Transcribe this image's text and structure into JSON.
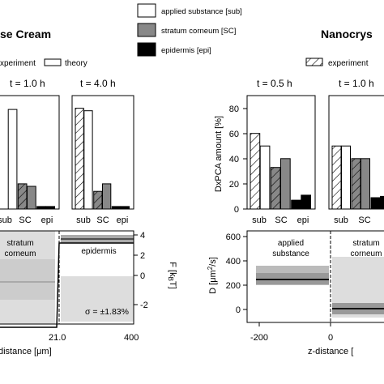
{
  "figure": {
    "left_title": "se Cream",
    "right_title": "Nanocrys"
  },
  "legend": {
    "entries": [
      {
        "label": "applied substance [sub]",
        "color": "#ffffff"
      },
      {
        "label": "stratum corneum [SC]",
        "color": "#888888"
      },
      {
        "label": "epidermis [epi]",
        "color": "#000000"
      }
    ],
    "left_experiment": "xperiment",
    "left_theory": "theory",
    "right_experiment": "experiment"
  },
  "colors": {
    "sub": "#ffffff",
    "sc": "#888888",
    "epi": "#000000",
    "band_light": "#dddddd",
    "band_mid": "#bbbbbb",
    "band_dark": "#999999"
  },
  "chart_data": [
    {
      "id": "bar-left-1h",
      "type": "bar",
      "title": "t = 1.0 h",
      "categories": [
        "sub",
        "SC",
        "epi"
      ],
      "ylim": [
        0,
        90
      ],
      "series": [
        {
          "name": "experiment",
          "values": [
            null,
            20,
            2
          ]
        },
        {
          "name": "theory",
          "values": [
            79,
            18,
            2
          ]
        }
      ]
    },
    {
      "id": "bar-left-4h",
      "type": "bar",
      "title": "t = 4.0 h",
      "categories": [
        "sub",
        "SC",
        "epi"
      ],
      "ylim": [
        0,
        90
      ],
      "series": [
        {
          "name": "experiment",
          "values": [
            80,
            14,
            2
          ]
        },
        {
          "name": "theory",
          "values": [
            78,
            20,
            2
          ]
        }
      ]
    },
    {
      "id": "bar-right-0.5h",
      "type": "bar",
      "title": "t = 0.5 h",
      "ylabel": "DxPCA amount [%]",
      "categories": [
        "sub",
        "SC",
        "epi"
      ],
      "yticks": [
        0,
        20,
        40,
        60,
        80
      ],
      "ylim": [
        0,
        90
      ],
      "series": [
        {
          "name": "experiment",
          "values": [
            60,
            33,
            7
          ]
        },
        {
          "name": "theory",
          "values": [
            50,
            40,
            11
          ]
        }
      ]
    },
    {
      "id": "bar-right-1h",
      "type": "bar",
      "title": "t = 1.0 h",
      "categories": [
        "sub",
        "SC",
        "epi"
      ],
      "ylim": [
        0,
        90
      ],
      "series": [
        {
          "name": "experiment",
          "values": [
            50,
            40,
            9
          ]
        },
        {
          "name": "theory",
          "values": [
            50,
            40,
            10
          ]
        }
      ]
    },
    {
      "id": "profile-left",
      "type": "line",
      "xlabel": "distance [μm]",
      "xticks": [
        "21.0",
        "400"
      ],
      "ylabel_right": "F [kBT]",
      "yticks_right": [
        4,
        2,
        0,
        -2
      ],
      "ylim_right": [
        -3,
        4.5
      ],
      "region_labels": [
        "stratum corneum",
        "epidermis"
      ],
      "annotation": "σ = ±1.83%",
      "sc_band": [
        -1.5,
        4.0
      ],
      "sc_level": 0.6,
      "epi_band": [
        3.4,
        3.8
      ],
      "epi_level": 3.6,
      "epi_lower_band": [
        -2.5,
        0.0
      ]
    },
    {
      "id": "profile-right",
      "type": "line",
      "xlabel": "z-distance [",
      "ylabel": "D [μm²/s]",
      "yticks": [
        0,
        200,
        400,
        600
      ],
      "ylim": [
        -50,
        730
      ],
      "xticks": [
        -200,
        0
      ],
      "xlim": [
        -250,
        50
      ],
      "region_labels": [
        "applied substance",
        "stratum corneum"
      ],
      "sub_band": [
        170,
        340
      ],
      "sub_inner_band": [
        210,
        300
      ],
      "sub_level": 255,
      "sc_level": 20,
      "sc_inner_band": [
        0,
        50
      ],
      "sc_outer_band": [
        -50,
        410
      ]
    }
  ]
}
